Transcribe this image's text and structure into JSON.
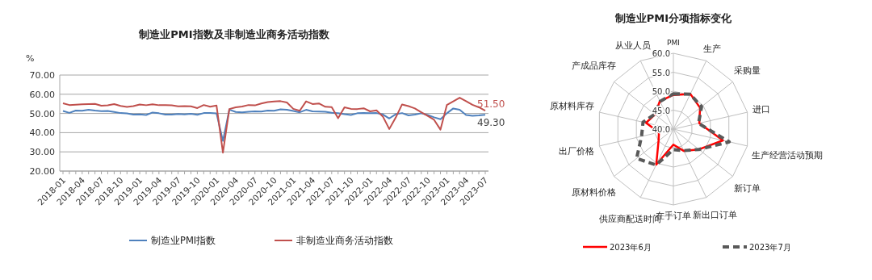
{
  "chart_data": [
    {
      "type": "line",
      "title": "制造业PMI指数及非制造业商务活动指数",
      "ylabel": "%",
      "categories": [
        "2018-01",
        null,
        null,
        "2018-04",
        null,
        null,
        "2018-07",
        null,
        null,
        "2018-10",
        null,
        null,
        "2019-01",
        null,
        null,
        "2019-04",
        null,
        null,
        "2019-07",
        null,
        null,
        "2019-10",
        null,
        null,
        "2020-01",
        null,
        null,
        "2020-04",
        null,
        null,
        "2020-07",
        null,
        null,
        "2020-10",
        null,
        null,
        "2021-01",
        null,
        null,
        "2021-04",
        null,
        null,
        "2021-07",
        null,
        null,
        "2021-10",
        null,
        null,
        "2022-01",
        null,
        null,
        "2022-04",
        null,
        null,
        "2022-07",
        null,
        null,
        "2022-10",
        null,
        null,
        "2023-01",
        null,
        null,
        "2023-04",
        null,
        null,
        "2023-07"
      ],
      "series": [
        {
          "name": "制造业PMI指数",
          "color": "#4f81bd",
          "values": [
            51.3,
            50.3,
            51.5,
            51.4,
            51.9,
            51.5,
            51.2,
            51.3,
            50.8,
            50.2,
            50.0,
            49.4,
            49.5,
            49.2,
            50.5,
            50.1,
            49.4,
            49.4,
            49.7,
            49.5,
            49.8,
            49.3,
            50.2,
            50.2,
            50.0,
            35.7,
            52.0,
            50.8,
            50.6,
            50.9,
            51.1,
            51.0,
            51.5,
            51.4,
            52.1,
            51.9,
            51.3,
            50.6,
            51.9,
            51.1,
            51.0,
            50.9,
            50.4,
            50.1,
            49.6,
            49.2,
            50.1,
            50.3,
            50.1,
            50.2,
            49.5,
            47.4,
            49.6,
            50.2,
            49.0,
            49.4,
            50.1,
            49.2,
            48.0,
            47.0,
            50.1,
            52.6,
            51.9,
            49.2,
            48.8,
            49.0,
            49.3
          ],
          "value_labels": [
            null,
            null,
            null,
            null,
            null,
            null,
            null,
            null,
            null,
            null,
            null,
            null,
            null,
            null,
            null,
            null,
            null,
            null,
            null,
            null,
            null,
            null,
            null,
            null,
            null,
            null,
            null,
            null,
            null,
            null,
            null,
            null,
            null,
            null,
            null,
            null,
            null,
            null,
            null,
            null,
            null,
            null,
            null,
            null,
            null,
            null,
            null,
            null,
            null,
            null,
            null,
            null,
            null,
            null,
            null,
            null,
            null,
            null,
            null,
            null,
            null,
            null,
            null,
            null,
            null,
            null,
            "49.30"
          ]
        },
        {
          "name": "非制造业商务活动指数",
          "color": "#c0504d",
          "values": [
            55.3,
            54.4,
            54.6,
            54.8,
            54.9,
            55.0,
            54.0,
            54.2,
            54.9,
            53.9,
            53.4,
            53.8,
            54.7,
            54.3,
            54.8,
            54.3,
            54.3,
            54.2,
            53.7,
            53.8,
            53.7,
            52.8,
            54.4,
            53.5,
            54.1,
            29.6,
            52.3,
            53.2,
            53.6,
            54.4,
            54.2,
            55.2,
            55.9,
            56.2,
            56.4,
            55.7,
            52.4,
            51.4,
            56.3,
            54.9,
            55.2,
            53.5,
            53.3,
            47.5,
            53.2,
            52.4,
            52.3,
            52.7,
            51.1,
            51.6,
            48.4,
            41.9,
            47.8,
            54.7,
            53.8,
            52.6,
            50.6,
            48.7,
            46.7,
            41.6,
            54.4,
            56.3,
            58.2,
            56.4,
            54.5,
            53.2,
            51.5
          ],
          "value_labels": [
            null,
            null,
            null,
            null,
            null,
            null,
            null,
            null,
            null,
            null,
            null,
            null,
            null,
            null,
            null,
            null,
            null,
            null,
            null,
            null,
            null,
            null,
            null,
            null,
            null,
            null,
            null,
            null,
            null,
            null,
            null,
            null,
            null,
            null,
            null,
            null,
            null,
            null,
            null,
            null,
            null,
            null,
            null,
            null,
            null,
            null,
            null,
            null,
            null,
            null,
            null,
            null,
            null,
            null,
            null,
            null,
            null,
            null,
            null,
            null,
            null,
            null,
            null,
            null,
            null,
            null,
            "51.50"
          ]
        }
      ],
      "ylim": [
        20,
        70
      ],
      "yticks": [
        {
          "value": 20,
          "label": "20.00"
        },
        {
          "value": 30,
          "label": "30.00"
        },
        {
          "value": 40,
          "label": "40.00"
        },
        {
          "value": 50,
          "label": "50.00"
        },
        {
          "value": 60,
          "label": "60.00"
        },
        {
          "value": 70,
          "label": "70.00"
        }
      ],
      "grid": "y",
      "legend": "bottom",
      "marker": "none",
      "line_style": "solid"
    },
    {
      "type": "radar",
      "title": "制造业PMI分项指标变化",
      "categories": [
        "PMI",
        "生产",
        "采购量",
        "进口",
        "生产经营活动预期",
        "新订单",
        "新出口订单",
        "在手订单",
        "供应商配送时间",
        "原材料价格",
        "出厂价格",
        "原材料库存",
        "产成品库存",
        "从业人员"
      ],
      "series": [
        {
          "name": "2023年6月",
          "color": "#ff0000",
          "line_style": "solid",
          "values": [
            49.0,
            50.3,
            49.0,
            47.0,
            53.4,
            48.6,
            46.4,
            44.1,
            50.4,
            45.0,
            43.9,
            47.4,
            46.2,
            48.2
          ]
        },
        {
          "name": "2023年7月",
          "color": "#595959",
          "line_style": "dashed",
          "values": [
            49.3,
            50.2,
            49.5,
            46.8,
            55.1,
            48.6,
            46.3,
            45.4,
            50.5,
            52.4,
            48.6,
            48.2,
            46.3,
            48.1
          ]
        }
      ],
      "ylim": [
        40,
        60
      ],
      "yticks": [
        {
          "value": 40,
          "label": "40.0"
        },
        {
          "value": 45,
          "label": "45.0"
        },
        {
          "value": 50,
          "label": "50.0"
        },
        {
          "value": 55,
          "label": "55.0"
        },
        {
          "value": 60,
          "label": "60.0"
        }
      ],
      "grid": true,
      "legend": "bottom"
    }
  ]
}
